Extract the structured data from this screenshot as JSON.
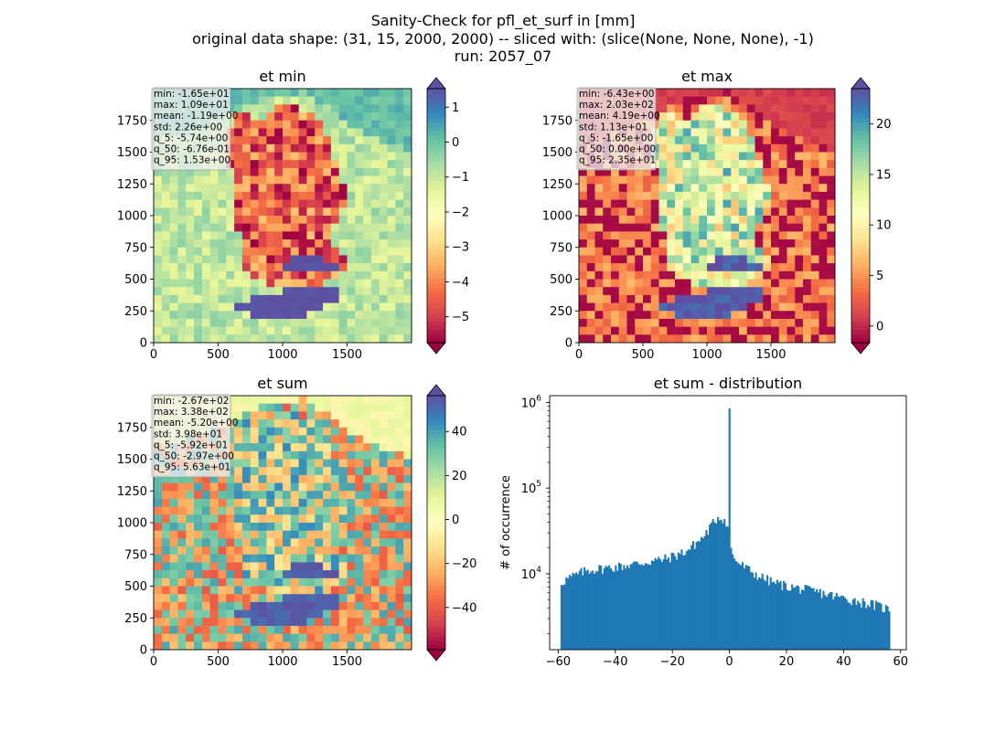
{
  "figure": {
    "title_lines": [
      "Sanity-Check for pfl_et_surf in [mm]",
      "original data shape: (31, 15, 2000, 2000) -- sliced with: (slice(None, None, None), -1)",
      "run: 2057_07"
    ]
  },
  "chart_data": [
    {
      "type": "heatmap",
      "title": "et min",
      "colormap": "Spectral",
      "xlim": [
        0,
        2000
      ],
      "ylim": [
        0,
        2000
      ],
      "xticks": [
        0,
        500,
        1000,
        1500
      ],
      "yticks": [
        0,
        250,
        500,
        750,
        1000,
        1250,
        1500,
        1750
      ],
      "color_range": [
        -5.74,
        1.53
      ],
      "colorbar_ticks": [
        1,
        0,
        -1,
        -2,
        -3,
        -4,
        -5
      ],
      "stats": [
        "min: -1.65e+01",
        "max: 1.09e+01",
        "mean: -1.19e+00",
        "std: 2.26e+00",
        "q_5: -5.74e+00",
        "q_50: -6.76e-01",
        "q_95: 1.53e+00"
      ]
    },
    {
      "type": "heatmap",
      "title": "et max",
      "colormap": "Spectral",
      "xlim": [
        0,
        2000
      ],
      "ylim": [
        0,
        2000
      ],
      "xticks": [
        0,
        500,
        1000,
        1500
      ],
      "yticks": [
        0,
        250,
        500,
        750,
        1000,
        1250,
        1500,
        1750
      ],
      "color_range": [
        -1.65,
        23.5
      ],
      "colorbar_ticks": [
        20,
        15,
        10,
        5,
        0
      ],
      "stats": [
        "min: -6.43e+00",
        "max: 2.03e+02",
        "mean: 4.19e+00",
        "std: 1.13e+01",
        "q_5: -1.65e+00",
        "q_50: 0.00e+00",
        "q_95: 2.35e+01"
      ]
    },
    {
      "type": "heatmap",
      "title": "et sum",
      "colormap": "Spectral",
      "xlim": [
        0,
        2000
      ],
      "ylim": [
        0,
        2000
      ],
      "xticks": [
        0,
        500,
        1000,
        1500
      ],
      "yticks": [
        0,
        250,
        500,
        750,
        1000,
        1250,
        1500,
        1750
      ],
      "color_range": [
        -59.2,
        56.3
      ],
      "colorbar_ticks": [
        40,
        20,
        0,
        -20,
        -40
      ],
      "stats": [
        "min: -2.67e+02",
        "max: 3.38e+02",
        "mean: -5.20e+00",
        "std: 3.98e+01",
        "q_5: -5.92e+01",
        "q_50: -2.97e+00",
        "q_95: 5.63e+01"
      ]
    },
    {
      "type": "bar",
      "title": "et sum - distribution",
      "ylabel": "# of occurrence",
      "xlabel": "",
      "yscale": "log",
      "xlim": [
        -63,
        62
      ],
      "ylim": [
        1300,
        1200000
      ],
      "xticks": [
        -60,
        -40,
        -20,
        0,
        20,
        40,
        60
      ],
      "yticks": [
        10000,
        100000,
        1000000
      ],
      "bar_color": "#1f77b4",
      "histogram": {
        "range": [
          -59.2,
          56.3
        ],
        "bin_count": 200,
        "profile_x": [
          -59.2,
          -57,
          -50,
          -40,
          -30,
          -22,
          -15,
          -9,
          -6,
          -4,
          -2.5,
          -1,
          -0.3,
          0.3,
          1,
          3,
          6,
          10,
          15,
          20,
          30,
          40,
          50,
          56.3
        ],
        "profile_y": [
          7800,
          8700,
          11000,
          12000,
          13500,
          15000,
          18500,
          27000,
          38000,
          46000,
          45000,
          40000,
          30000,
          21000,
          16500,
          13500,
          11500,
          9500,
          8000,
          7200,
          6200,
          5200,
          4400,
          3800
        ],
        "peak": {
          "x": 0,
          "y": 850000
        }
      }
    }
  ]
}
